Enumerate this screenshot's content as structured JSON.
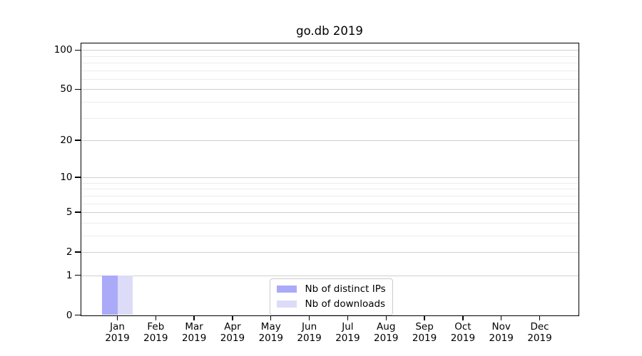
{
  "chart_data": {
    "type": "bar",
    "title": "go.db 2019",
    "categories": [
      "Jan",
      "Feb",
      "Mar",
      "Apr",
      "May",
      "Jun",
      "Jul",
      "Aug",
      "Sep",
      "Oct",
      "Nov",
      "Dec"
    ],
    "category_year": "2019",
    "series": [
      {
        "name": "Nb of distinct IPs",
        "color": "#aaaaf8",
        "values": [
          1,
          0,
          0,
          0,
          0,
          0,
          0,
          0,
          0,
          0,
          0,
          0
        ]
      },
      {
        "name": "Nb of downloads",
        "color": "#dcdcf8",
        "values": [
          1,
          0,
          0,
          0,
          0,
          0,
          0,
          0,
          0,
          0,
          0,
          0
        ]
      }
    ],
    "xlabel": "",
    "ylabel": "",
    "y_scale": "log1p",
    "ylim": [
      0,
      113
    ],
    "y_ticks": [
      0,
      1,
      2,
      5,
      10,
      20,
      50,
      100
    ],
    "y_minor_ticks": [
      3,
      4,
      6,
      7,
      8,
      9,
      30,
      40,
      60,
      70,
      80,
      90
    ],
    "grid": true,
    "legend_position": "lower center"
  },
  "colors": {
    "major_grid": "#cfcfcf",
    "minor_grid": "#ececec",
    "spine": "#000000",
    "legend_border": "#cccccc",
    "background": "#ffffff"
  }
}
